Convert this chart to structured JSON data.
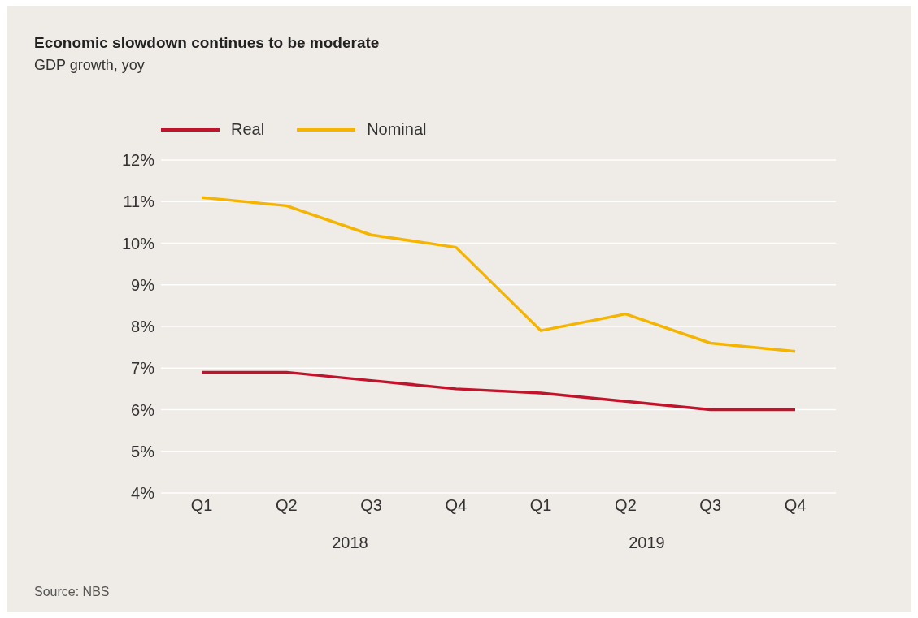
{
  "chart_data": {
    "type": "line",
    "title": "Economic slowdown continues to be moderate",
    "subtitle": "GDP growth, yoy",
    "categories": [
      "Q1",
      "Q2",
      "Q3",
      "Q4",
      "Q1",
      "Q2",
      "Q3",
      "Q4"
    ],
    "series": [
      {
        "name": "Real",
        "color": "#c0142c",
        "values": [
          6.9,
          6.9,
          6.7,
          6.5,
          6.4,
          6.2,
          6.0,
          6.0
        ]
      },
      {
        "name": "Nominal",
        "color": "#f5b400",
        "values": [
          11.1,
          10.9,
          10.2,
          9.9,
          7.9,
          8.3,
          7.6,
          7.4
        ]
      }
    ],
    "ylim": [
      4,
      12
    ],
    "yticks": [
      {
        "value": 4,
        "label": "4%"
      },
      {
        "value": 5,
        "label": "5%"
      },
      {
        "value": 6,
        "label": "6%"
      },
      {
        "value": 7,
        "label": "7%"
      },
      {
        "value": 8,
        "label": "8%"
      },
      {
        "value": 9,
        "label": "9%"
      },
      {
        "value": 10,
        "label": "10%"
      },
      {
        "value": 11,
        "label": "11%"
      },
      {
        "value": 12,
        "label": "12%"
      }
    ],
    "grid": "y",
    "legend": "top left",
    "marker": "none",
    "line_style": "solid",
    "annotations": [
      "2018",
      "2019",
      "Source: NBS"
    ]
  }
}
